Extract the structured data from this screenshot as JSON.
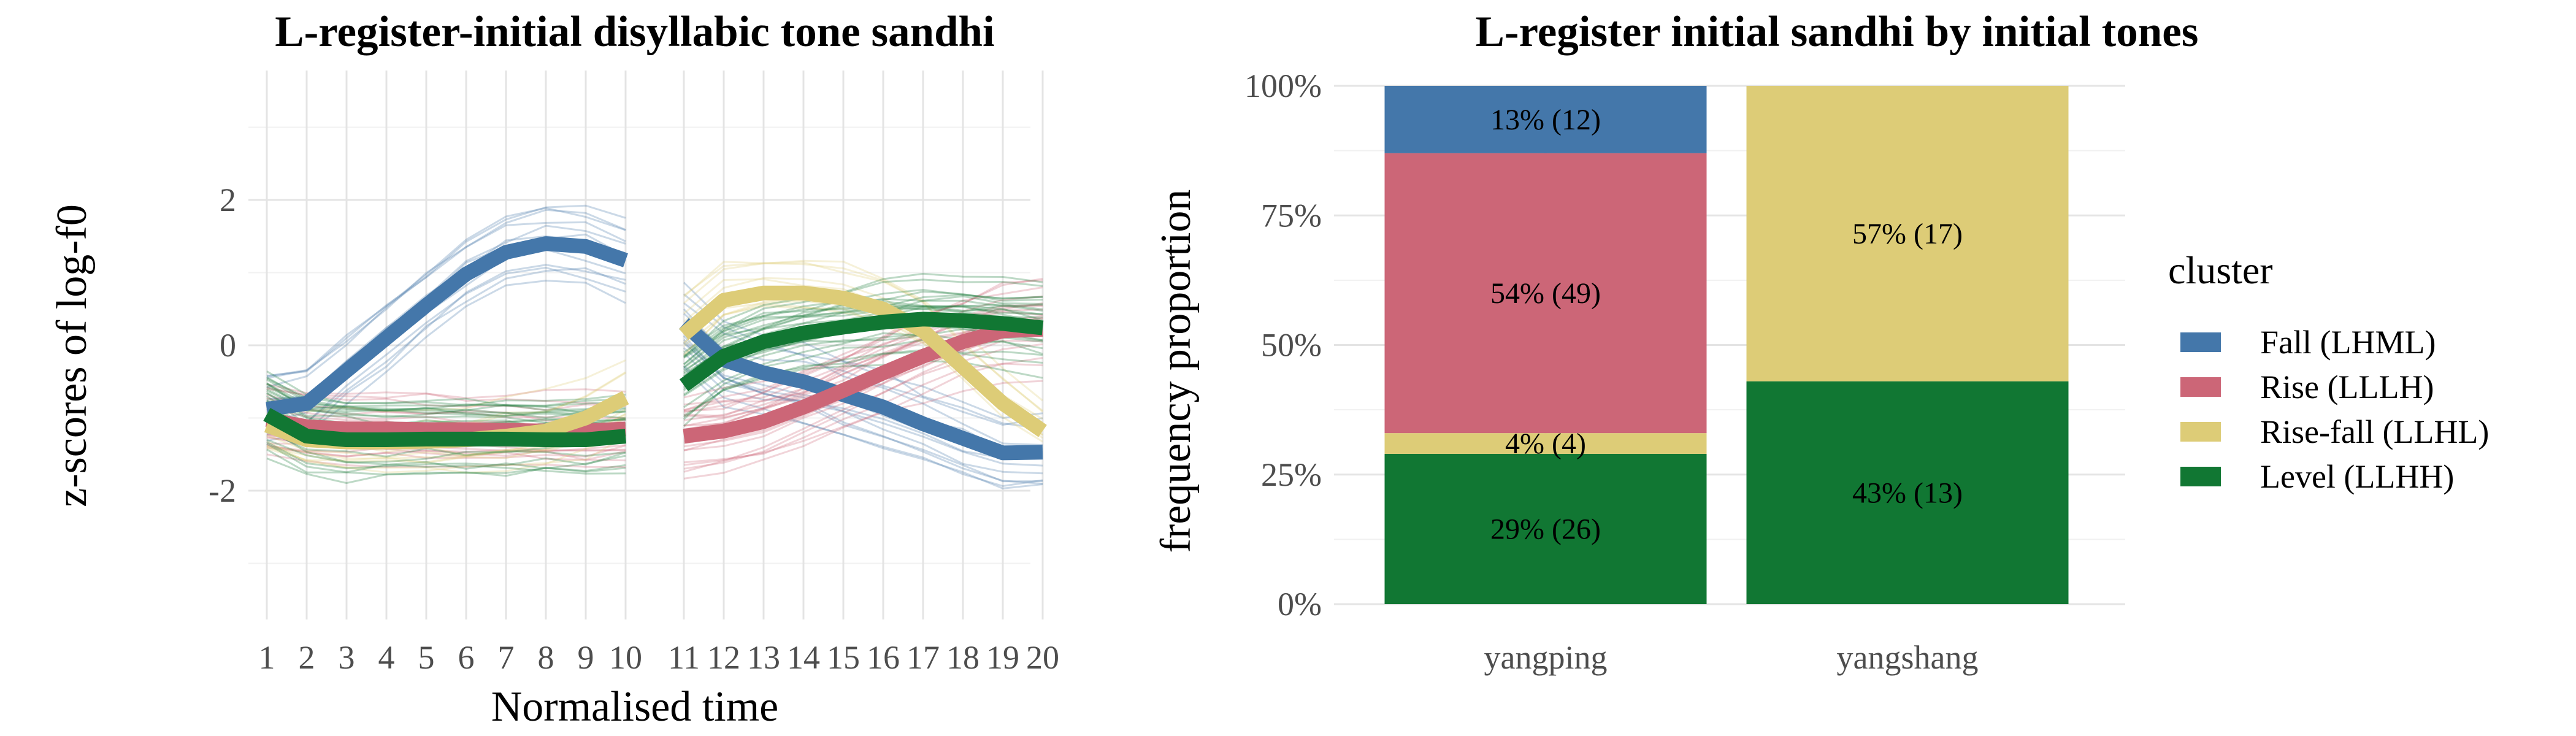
{
  "chart_data": [
    {
      "type": "line",
      "title": "L-register-initial disyllabic tone sandhi",
      "xlabel": "Normalised time",
      "ylabel": "z-scores of log-f0",
      "x_ticks": [
        "1",
        "2",
        "3",
        "4",
        "5",
        "6",
        "7",
        "8",
        "9",
        "10",
        "11",
        "12",
        "13",
        "14",
        "15",
        "16",
        "17",
        "18",
        "19",
        "20"
      ],
      "y_ticks": [
        "2",
        "0",
        "-2"
      ],
      "ylim": [
        -3.8,
        3.8
      ],
      "grid": true,
      "series": [
        {
          "name": "Fall (LHML)",
          "color": "#4477AA",
          "syll1": [
            -0.88,
            -0.8,
            -0.35,
            0.1,
            0.55,
            0.98,
            1.28,
            1.4,
            1.36,
            1.17
          ],
          "syll2": [
            0.3,
            -0.2,
            -0.38,
            -0.5,
            -0.68,
            -0.85,
            -1.08,
            -1.28,
            -1.48,
            -1.47
          ]
        },
        {
          "name": "Rise (LLLH)",
          "color": "#CC6677",
          "syll1": [
            -1.02,
            -1.12,
            -1.15,
            -1.15,
            -1.16,
            -1.16,
            -1.17,
            -1.18,
            -1.18,
            -1.15
          ],
          "syll2": [
            -1.25,
            -1.18,
            -1.05,
            -0.85,
            -0.62,
            -0.38,
            -0.15,
            0.05,
            0.2,
            0.22
          ]
        },
        {
          "name": "Rise-fall (LLHL)",
          "color": "#DDCC77",
          "syll1": [
            -1.1,
            -1.3,
            -1.33,
            -1.33,
            -1.32,
            -1.3,
            -1.25,
            -1.18,
            -1.0,
            -0.72
          ],
          "syll2": [
            0.15,
            0.62,
            0.72,
            0.72,
            0.65,
            0.5,
            0.2,
            -0.3,
            -0.8,
            -1.18
          ]
        },
        {
          "name": "Level (LLHH)",
          "color": "#117733",
          "syll1": [
            -0.95,
            -1.25,
            -1.3,
            -1.3,
            -1.29,
            -1.29,
            -1.29,
            -1.3,
            -1.3,
            -1.25
          ],
          "syll2": [
            -0.55,
            -0.15,
            0.05,
            0.17,
            0.25,
            0.32,
            0.36,
            0.34,
            0.3,
            0.24
          ]
        }
      ]
    },
    {
      "type": "bar",
      "stacked": true,
      "title": "L-register initial sandhi by initial tones",
      "xlabel": "",
      "ylabel": "frequency proportion",
      "categories": [
        "yangping",
        "yangshang"
      ],
      "y_ticks": [
        "100%",
        "75%",
        "50%",
        "25%",
        "0%"
      ],
      "ylim": [
        0,
        1
      ],
      "legend_title": "cluster",
      "legend_position": "right",
      "series": [
        {
          "name": "Fall (LHML)",
          "color": "#4477AA",
          "values": [
            0.13,
            0.0
          ],
          "labels": [
            "13% (12)",
            ""
          ]
        },
        {
          "name": "Rise (LLLH)",
          "color": "#CC6677",
          "values": [
            0.54,
            0.0
          ],
          "labels": [
            "54% (49)",
            ""
          ]
        },
        {
          "name": "Rise-fall (LLHL)",
          "color": "#DDCC77",
          "values": [
            0.04,
            0.57
          ],
          "labels": [
            "4% (4)",
            "57% (17)"
          ]
        },
        {
          "name": "Level (LLHH)",
          "color": "#117733",
          "values": [
            0.29,
            0.43
          ],
          "labels": [
            "29% (26)",
            "43% (13)"
          ]
        }
      ]
    }
  ]
}
